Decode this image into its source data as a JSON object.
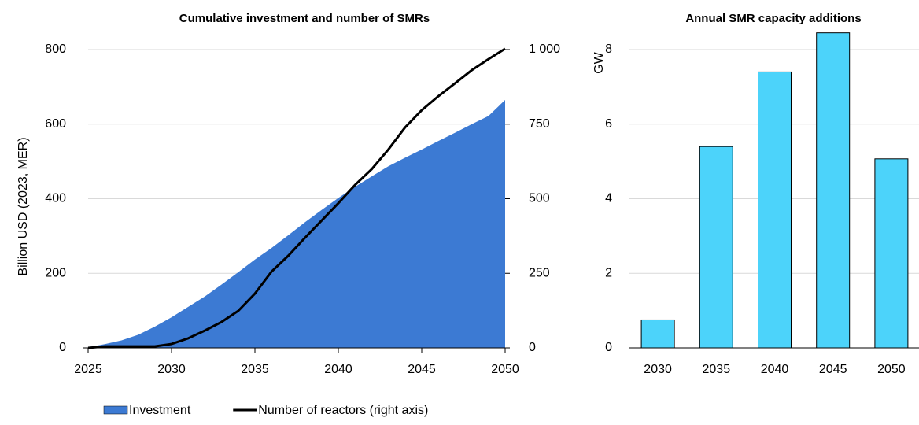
{
  "chart_data": [
    {
      "type": "area-line",
      "title": "Cumulative investment and number of SMRs",
      "y_label": "Billion USD (2023, MER)",
      "x": [
        2025,
        2026,
        2027,
        2028,
        2029,
        2030,
        2031,
        2032,
        2033,
        2034,
        2035,
        2036,
        2037,
        2038,
        2039,
        2040,
        2041,
        2042,
        2043,
        2044,
        2045,
        2046,
        2047,
        2048,
        2049,
        2050
      ],
      "series": [
        {
          "name": "Investment",
          "color": "#3c7ad3",
          "kind": "area",
          "values": [
            2,
            10,
            20,
            35,
            57,
            82,
            110,
            138,
            170,
            203,
            237,
            268,
            302,
            337,
            370,
            402,
            432,
            460,
            487,
            510,
            532,
            555,
            577,
            600,
            622,
            665
          ]
        },
        {
          "name": "Number of reactors (right axis)",
          "color": "#000000",
          "kind": "line",
          "axis": "y2",
          "values": [
            0,
            5,
            5,
            5,
            5,
            13,
            32,
            58,
            87,
            124,
            182,
            256,
            309,
            369,
            427,
            485,
            546,
            599,
            665,
            739,
            797,
            844,
            887,
            931,
            968,
            1003
          ]
        }
      ],
      "xlim": [
        2025,
        2050
      ],
      "xticks": [
        2025,
        2030,
        2035,
        2040,
        2045,
        2050
      ],
      "ylim": [
        0,
        800
      ],
      "yticks": [
        0,
        200,
        400,
        600,
        800
      ],
      "y2lim": [
        0,
        1000
      ],
      "y2ticks": [
        0,
        250,
        500,
        750,
        {
          "value": 1000,
          "label": "1 000"
        }
      ],
      "grid": true,
      "legend": "bottom"
    },
    {
      "type": "bar",
      "title": "Annual SMR capacity additions",
      "y_label": "GW",
      "categories": [
        "2030",
        "2035",
        "2040",
        "2045",
        "2050"
      ],
      "values": [
        0.75,
        5.4,
        7.4,
        8.45,
        5.07
      ],
      "color": "#4cd3fa",
      "ylim": [
        0,
        8.5
      ],
      "yticks": [
        0,
        2,
        4,
        6,
        8
      ],
      "grid": true
    }
  ]
}
